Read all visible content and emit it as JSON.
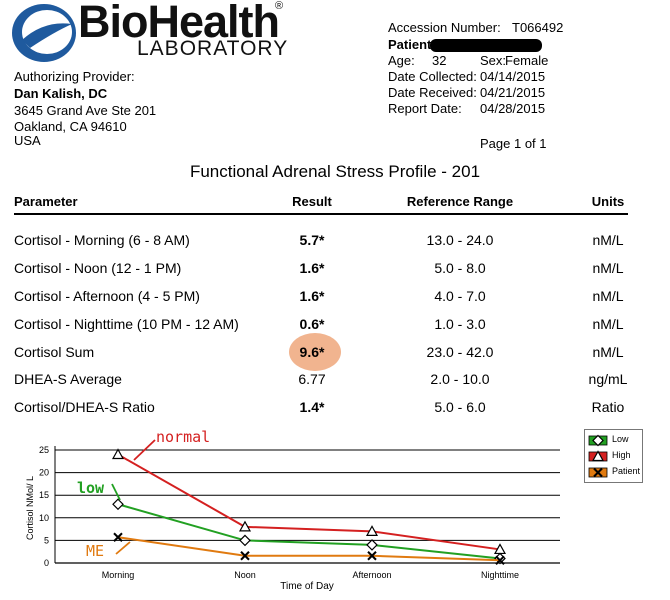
{
  "logo": {
    "name": "BioHealth",
    "subtitle": "LABORATORY",
    "registered": "®"
  },
  "provider": {
    "label": "Authorizing Provider:",
    "name": "Dan Kalish, DC",
    "address_line1": "3645 Grand Ave Ste 201",
    "address_line2": "Oakland, CA 94610",
    "country": "USA"
  },
  "patient_info": {
    "accession_label": "Accession Number:",
    "accession_value": "T066492",
    "patient_label": "Patient:",
    "age_label": "Age:",
    "age_value": "32",
    "sex_label": "Sex:",
    "sex_value": "Female",
    "collected_label": "Date Collected:",
    "collected_value": "04/14/2015",
    "received_label": "Date Received:",
    "received_value": "04/21/2015",
    "report_label": "Report Date:",
    "report_value": "04/28/2015",
    "page": "Page 1  of 1"
  },
  "report_title": "Functional Adrenal Stress Profile - 201",
  "table": {
    "headers": {
      "parameter": "Parameter",
      "result": "Result",
      "range": "Reference Range",
      "units": "Units"
    },
    "rows": [
      {
        "parameter": "Cortisol - Morning (6 - 8 AM)",
        "result": "5.7*",
        "range": "13.0 - 24.0",
        "units": "nM/L",
        "bold": true
      },
      {
        "parameter": "Cortisol - Noon (12 - 1 PM)",
        "result": "1.6*",
        "range": "5.0 - 8.0",
        "units": "nM/L",
        "bold": true
      },
      {
        "parameter": "Cortisol - Afternoon (4 - 5 PM)",
        "result": "1.6*",
        "range": "4.0 - 7.0",
        "units": "nM/L",
        "bold": true
      },
      {
        "parameter": "Cortisol - Nighttime (10 PM - 12 AM)",
        "result": "0.6*",
        "range": "1.0 - 3.0",
        "units": "nM/L",
        "bold": true
      },
      {
        "parameter": "Cortisol Sum",
        "result": "9.6*",
        "range": "23.0 - 42.0",
        "units": "nM/L",
        "bold": true,
        "highlighted": true
      },
      {
        "parameter": "DHEA-S Average",
        "result": "6.77",
        "range": "2.0 - 10.0",
        "units": "ng/mL",
        "bold": false
      },
      {
        "parameter": "Cortisol/DHEA-S Ratio",
        "result": "1.4*",
        "range": "5.0 - 6.0",
        "units": "Ratio",
        "bold": true
      }
    ]
  },
  "chart_data": {
    "type": "line",
    "xlabel": "Time of Day",
    "ylabel": "Cortisol NMol/ L",
    "ylim": [
      0,
      25
    ],
    "yticks": [
      0,
      5,
      10,
      15,
      20,
      25
    ],
    "grid": true,
    "legend_position": "top-right",
    "categories": [
      "Morning",
      "Noon",
      "Afternoon",
      "Nighttime"
    ],
    "series": [
      {
        "name": "High",
        "color": "#d42020",
        "marker": "triangle",
        "values": [
          24,
          8,
          7,
          3
        ]
      },
      {
        "name": "Low",
        "color": "#22a022",
        "marker": "diamond",
        "values": [
          13,
          5,
          4,
          1
        ]
      },
      {
        "name": "Patient",
        "color": "#e07a10",
        "marker": "x",
        "values": [
          5.7,
          1.6,
          1.6,
          0.6
        ]
      }
    ],
    "annotations": [
      {
        "text": "normal",
        "color": "#d42020"
      },
      {
        "text": "low",
        "color": "#22a022"
      },
      {
        "text": "ME",
        "color": "#e07a10"
      }
    ]
  }
}
